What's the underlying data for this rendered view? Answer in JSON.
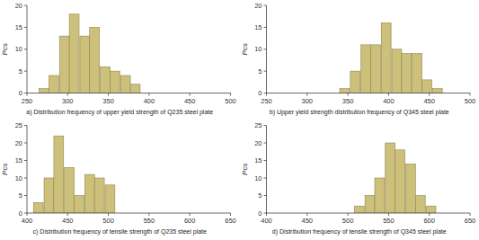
{
  "chart_data": [
    {
      "type": "bar",
      "xlabel": "a) Distribution frequency of upper yield strength of Q235 steel plate",
      "ylabel": "Pcs",
      "x": [
        265,
        277,
        290,
        302,
        315,
        327,
        340,
        352,
        365,
        377
      ],
      "bin_width": 12,
      "values": [
        1,
        4,
        13,
        18,
        13,
        15,
        6,
        5,
        4,
        2
      ],
      "color": "#ccc07a",
      "xlim": [
        250,
        500
      ],
      "ylim": [
        0,
        20
      ],
      "xticks": [
        250,
        300,
        350,
        400,
        450,
        500
      ],
      "yticks": [
        0,
        5,
        10,
        15,
        20
      ]
    },
    {
      "type": "bar",
      "xlabel": "b) Upper yield strength distribution frequency of Q345 steel plate",
      "ylabel": "Pcs",
      "x": [
        340,
        353,
        366,
        378,
        391,
        404,
        416,
        429,
        441,
        454
      ],
      "bin_width": 12,
      "values": [
        1,
        5,
        11,
        11,
        16,
        10,
        9,
        9,
        3,
        1
      ],
      "color": "#ccc07a",
      "xlim": [
        250,
        500
      ],
      "ylim": [
        0,
        20
      ],
      "xticks": [
        250,
        300,
        350,
        400,
        450,
        500
      ],
      "yticks": [
        0,
        5,
        10,
        15,
        20
      ]
    },
    {
      "type": "bar",
      "xlabel": "c) Distribution frequency of tensile strength of Q235 steel plate",
      "ylabel": "Pcs",
      "x": [
        408,
        421,
        433,
        446,
        458,
        471,
        483,
        496
      ],
      "bin_width": 12,
      "values": [
        3,
        10,
        22,
        13,
        5,
        11,
        10,
        8
      ],
      "color": "#ccc07a",
      "xlim": [
        400,
        650
      ],
      "ylim": [
        0,
        25
      ],
      "xticks": [
        400,
        450,
        500,
        550,
        600,
        650
      ],
      "yticks": [
        0,
        5,
        10,
        15,
        20,
        25
      ]
    },
    {
      "type": "bar",
      "xlabel": "d) Distribution frequency of tensile strength of Q345 steel plate",
      "ylabel": "Pcs",
      "x": [
        508,
        521,
        533,
        546,
        558,
        571,
        583,
        596
      ],
      "bin_width": 12,
      "values": [
        2,
        5,
        10,
        20,
        18,
        14,
        5,
        2
      ],
      "color": "#ccc07a",
      "xlim": [
        400,
        650
      ],
      "ylim": [
        0,
        25
      ],
      "xticks": [
        400,
        450,
        500,
        550,
        600,
        650
      ],
      "yticks": [
        0,
        5,
        10,
        15,
        20,
        25
      ]
    }
  ]
}
